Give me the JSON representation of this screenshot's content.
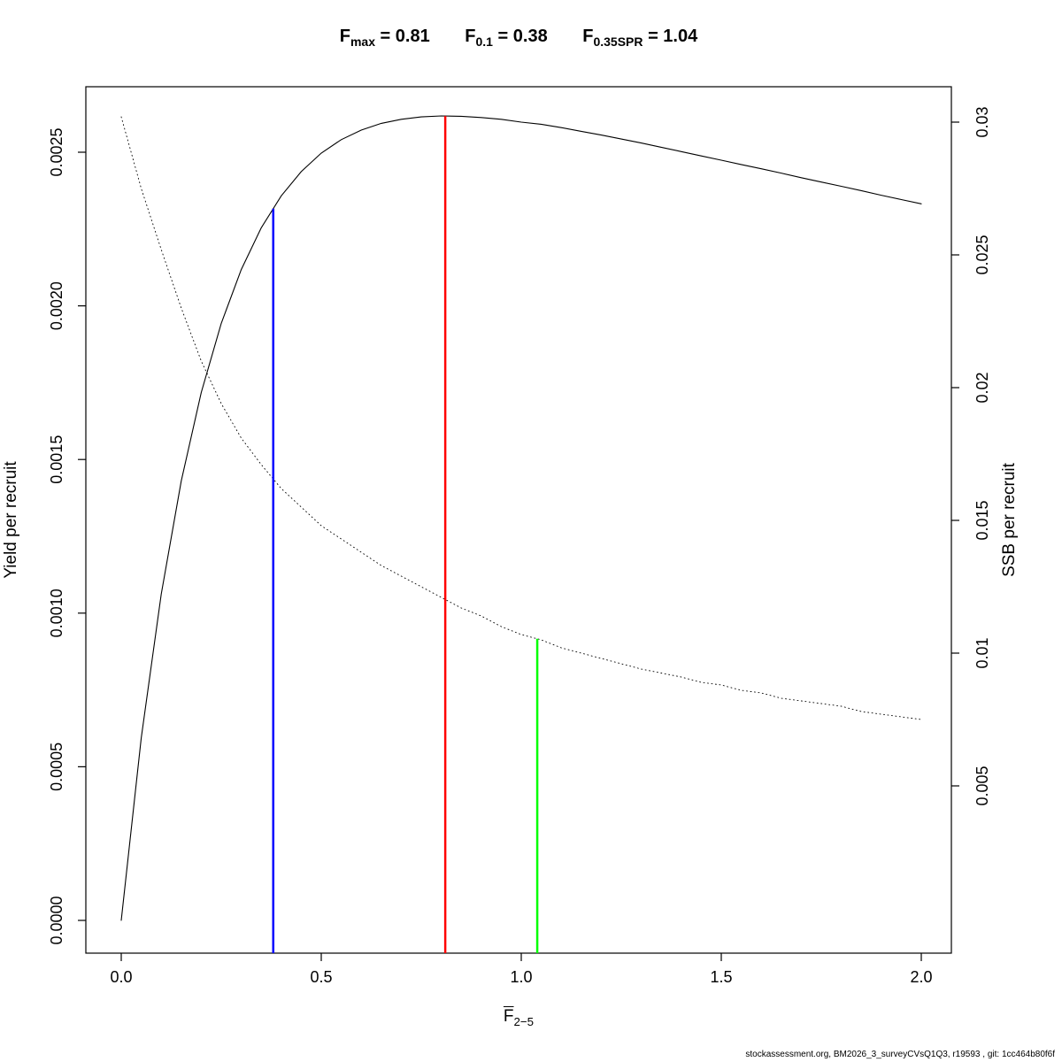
{
  "header": {
    "terms": [
      {
        "base": "F",
        "sub": "max",
        "value": " = 0.81"
      },
      {
        "base": "F",
        "sub": "0.1",
        "value": " = 0.38"
      },
      {
        "base": "F",
        "sub": "0.35SPR",
        "value": " = 1.04"
      }
    ]
  },
  "x_axis": {
    "base": "F",
    "sub": "2−5",
    "overbar": true
  },
  "footer": {
    "text": "stockassessment.org, BM2026_3_surveyCVsQ1Q3, r19593 , git: 1cc464b80f6f"
  },
  "colors": {
    "f01_line": "#0000FF",
    "fmax_line": "#FF0000",
    "f35spr_line": "#00FF00",
    "curves": "#000000"
  },
  "chart_data": {
    "type": "line",
    "title": "Fmax = 0.81  F0.1 = 0.38  F0.35SPR = 1.04",
    "xlabel": "Fbar(2-5)",
    "y_left_label": "Yield per recruit",
    "y_right_label": "SSB per recruit",
    "x_range": [
      0,
      2.05
    ],
    "y_left_range": [
      0,
      0.0026
    ],
    "y_right_range": [
      0,
      0.0305
    ],
    "grid": false,
    "legend": false,
    "x_ticks": {
      "values": [
        0,
        0.5,
        1.0,
        1.5,
        2.0
      ],
      "labels": [
        "0.0",
        "0.5",
        "1.0",
        "1.5",
        "2.0"
      ]
    },
    "y_left_ticks": {
      "values": [
        0.0,
        0.0005,
        0.001,
        0.0015,
        0.002,
        0.0025
      ],
      "labels": [
        "0.0000",
        "0.0005",
        "0.0010",
        "0.0015",
        "0.0020",
        "0.0025"
      ]
    },
    "y_right_ticks": {
      "values": [
        0.005,
        0.01,
        0.015,
        0.02,
        0.025,
        0.03
      ],
      "labels": [
        "0.005",
        "0.01",
        "0.015",
        "0.02",
        "0.025",
        "0.03"
      ]
    },
    "series": [
      {
        "name": "yield-per-recruit",
        "axis": "left",
        "style": "solid",
        "color": "#000000",
        "x": [
          0,
          0.05,
          0.1,
          0.15,
          0.2,
          0.25,
          0.3,
          0.35,
          0.4,
          0.45,
          0.5,
          0.55,
          0.6,
          0.65,
          0.7,
          0.75,
          0.8,
          0.85,
          0.9,
          0.95,
          1,
          1.05,
          1.1,
          1.15,
          1.2,
          1.25,
          1.3,
          1.35,
          1.4,
          1.45,
          1.5,
          1.55,
          1.6,
          1.65,
          1.7,
          1.75,
          1.8,
          1.85,
          1.9,
          1.95,
          2
        ],
        "y": [
          0,
          0.000594,
          0.001062,
          0.00143,
          0.001718,
          0.001943,
          0.002118,
          0.002254,
          0.002358,
          0.002437,
          0.002497,
          0.002541,
          0.002572,
          0.002594,
          0.002607,
          0.002615,
          0.002618,
          0.002617,
          0.002613,
          0.002607,
          0.002598,
          0.002591,
          0.00258,
          0.002568,
          0.002556,
          0.002543,
          0.00253,
          0.002516,
          0.002502,
          0.002488,
          0.002474,
          0.00246,
          0.002446,
          0.002432,
          0.002417,
          0.002403,
          0.002389,
          0.002375,
          0.00236,
          0.002346,
          0.002332
        ]
      },
      {
        "name": "ssb-per-recruit",
        "axis": "right",
        "style": "dotted",
        "color": "#000000",
        "x": [
          0,
          0.05,
          0.1,
          0.15,
          0.2,
          0.25,
          0.3,
          0.35,
          0.4,
          0.45,
          0.5,
          0.55,
          0.6,
          0.65,
          0.7,
          0.75,
          0.8,
          0.85,
          0.9,
          0.95,
          1,
          1.05,
          1.1,
          1.15,
          1.2,
          1.25,
          1.3,
          1.35,
          1.4,
          1.45,
          1.5,
          1.55,
          1.6,
          1.65,
          1.7,
          1.75,
          1.8,
          1.85,
          1.9,
          1.95,
          2
        ],
        "y": [
          0.0302,
          0.0275,
          0.0252,
          0.023,
          0.021,
          0.0194,
          0.0181,
          0.0171,
          0.0162,
          0.0155,
          0.0148,
          0.0143,
          0.0138,
          0.0133,
          0.0129,
          0.0125,
          0.0121,
          0.0117,
          0.0114,
          0.011,
          0.0107,
          0.0105,
          0.0102,
          0.01,
          0.0098,
          0.0096,
          0.0094,
          0.00925,
          0.0091,
          0.0089,
          0.0088,
          0.0086,
          0.0085,
          0.0083,
          0.0082,
          0.0081,
          0.008,
          0.0078,
          0.0077,
          0.0076,
          0.0075
        ]
      }
    ],
    "ref_lines": [
      {
        "name": "f01",
        "label": "F0.1",
        "f": 0.38,
        "color": "#0000FF",
        "touches": "yield-per-recruit"
      },
      {
        "name": "fmax",
        "label": "Fmax",
        "f": 0.81,
        "color": "#FF0000",
        "touches": "yield-per-recruit"
      },
      {
        "name": "f35spr",
        "label": "F0.35SPR",
        "f": 1.04,
        "color": "#00FF00",
        "touches": "ssb-per-recruit"
      }
    ]
  }
}
